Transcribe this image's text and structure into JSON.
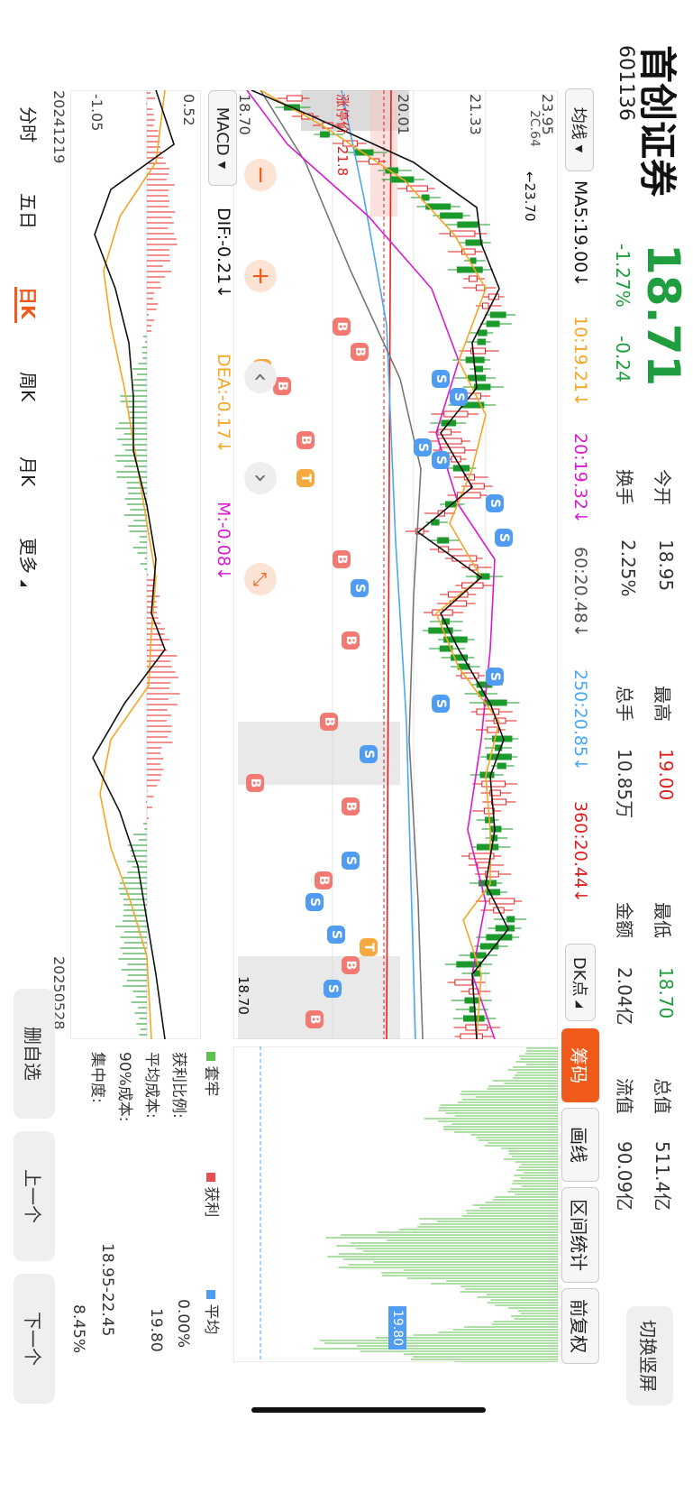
{
  "header": {
    "name": "首创证券",
    "code": "601136",
    "price": "18.71",
    "change_pct": "-1.27%",
    "change": "-0.24",
    "switch_label": "切换竖屏"
  },
  "quote": {
    "open_label": "今开",
    "open": "18.95",
    "high_label": "最高",
    "high": "19.00",
    "low_label": "最低",
    "low": "18.70",
    "mktcap_label": "总值",
    "mktcap": "511.4亿",
    "turnover_label": "换手",
    "turnover": "2.25%",
    "volume_label": "总手",
    "volume": "10.85万",
    "amount_label": "金额",
    "amount": "2.04亿",
    "float_label": "流值",
    "float": "90.09亿"
  },
  "ma_bar": {
    "selector": "均线",
    "ma5": "MA5:19.00↓",
    "ma10": "10:19.21↓",
    "ma20": "20:19.32↓",
    "ma60": "60:20.48↓",
    "ma250": "250:20.85↓",
    "ma360": "360:20.44↓",
    "dk": "DK点",
    "colors": {
      "ma5": "#111111",
      "ma10": "#f5a623",
      "ma20": "#d81bce",
      "ma60": "#777777",
      "ma250": "#4aa8f0",
      "ma360": "#e02020"
    }
  },
  "right_tabs": [
    "筹码",
    "画线",
    "区间统计",
    "前复权"
  ],
  "chart": {
    "y_labels": [
      "23.95",
      "21.33",
      "20.01",
      "18.70"
    ],
    "limit_up_label": "涨停价",
    "limit_up_value": "21.8",
    "high_mark": "23.70",
    "low_mark": "18.70",
    "ma_sub_label": "2C.64",
    "start_date": "20241219",
    "end_date": "20250528"
  },
  "macd": {
    "selector": "MACD",
    "dif": "DIF:-0.21↓",
    "dea": "DEA:-0.17↓",
    "m": "M:-0.08↓",
    "top": "0.52",
    "bottom": "-1.05"
  },
  "chips": {
    "legend_trapped": "套牢",
    "legend_profit": "获利",
    "legend_avg": "平均",
    "profit_ratio_label": "获利比例:",
    "profit_ratio": "0.00%",
    "avg_cost_label": "平均成本:",
    "avg_cost": "19.80",
    "cost90_label": "90%成本:",
    "cost90": "18.95-22.45",
    "concentration_label": "集中度:",
    "concentration": "8.45%",
    "avg_marker": "19.80"
  },
  "period_tabs": [
    "分时",
    "五日",
    "日K",
    "周K",
    "月K",
    "更多"
  ],
  "active_period": "日K",
  "side_buttons": [
    "删自选",
    "上一个",
    "下一个"
  ],
  "signal_labels": [
    "B",
    "S",
    "T"
  ]
}
